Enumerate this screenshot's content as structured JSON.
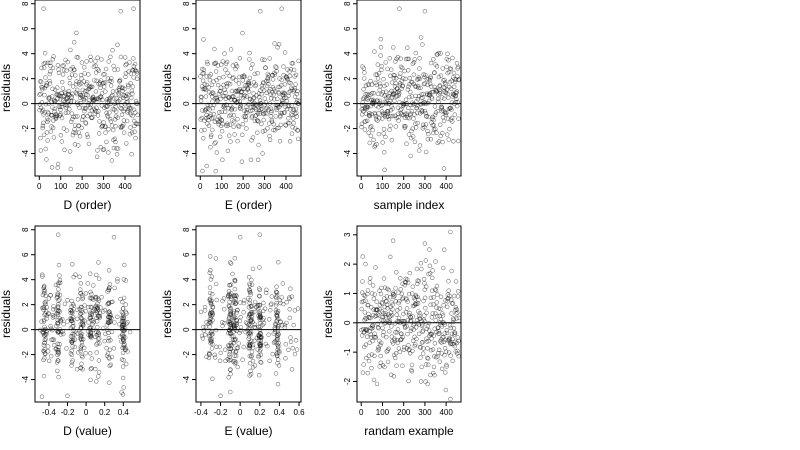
{
  "chart_data": [
    {
      "type": "scatter",
      "xlabel": "D (order)",
      "ylabel": "residuals",
      "xlim": [
        -20,
        470
      ],
      "ylim": [
        -5.8,
        8.3
      ],
      "xticks": [
        0,
        100,
        200,
        300,
        400
      ],
      "yticks": [
        -4,
        -2,
        0,
        2,
        4,
        6,
        8
      ],
      "hline": 0,
      "points": {
        "n": 460,
        "x_range": [
          1,
          460
        ],
        "ordered_x": true,
        "center": 0.3,
        "spread": 1.9,
        "outliers": [
          [
            20,
            7.6
          ],
          [
            60,
            -5.1
          ],
          [
            380,
            7.4
          ],
          [
            440,
            7.6
          ]
        ]
      }
    },
    {
      "type": "scatter",
      "xlabel": "E (order)",
      "ylabel": "residuals",
      "xlim": [
        -20,
        470
      ],
      "ylim": [
        -5.8,
        8.3
      ],
      "xticks": [
        0,
        100,
        200,
        300,
        400
      ],
      "yticks": [
        -4,
        -2,
        0,
        2,
        4,
        6,
        8
      ],
      "hline": 0,
      "points": {
        "n": 460,
        "x_range": [
          1,
          460
        ],
        "ordered_x": true,
        "center": 0.3,
        "spread": 1.9,
        "outliers": [
          [
            10,
            -5.4
          ],
          [
            30,
            -5.0
          ],
          [
            280,
            7.4
          ],
          [
            380,
            7.6
          ]
        ]
      }
    },
    {
      "type": "scatter",
      "xlabel": "sample index",
      "ylabel": "residuals",
      "xlim": [
        -20,
        470
      ],
      "ylim": [
        -5.8,
        8.3
      ],
      "xticks": [
        0,
        100,
        200,
        300,
        400
      ],
      "yticks": [
        -4,
        -2,
        0,
        2,
        4,
        6,
        8
      ],
      "hline": 0,
      "points": {
        "n": 460,
        "x_range": [
          1,
          460
        ],
        "ordered_x": true,
        "center": 0.3,
        "spread": 1.9,
        "outliers": [
          [
            180,
            7.6
          ],
          [
            300,
            7.4
          ],
          [
            110,
            -5.3
          ],
          [
            390,
            -5.2
          ]
        ]
      }
    },
    {
      "type": "scatter",
      "xlabel": "D (value)",
      "ylabel": "residuals",
      "xlim": [
        -0.55,
        0.58
      ],
      "ylim": [
        -5.8,
        8.3
      ],
      "xticks": [
        -0.4,
        -0.2,
        0.0,
        0.2,
        0.4
      ],
      "yticks": [
        -4,
        -2,
        0,
        2,
        4,
        6,
        8
      ],
      "hline": 0,
      "points": {
        "n": 460,
        "x_range": [
          -0.5,
          0.5
        ],
        "x_clusters": [
          -0.45,
          -0.3,
          -0.15,
          -0.05,
          0.05,
          0.12,
          0.25,
          0.4
        ],
        "center": 0.3,
        "spread": 1.9,
        "outliers": [
          [
            -0.3,
            7.6
          ],
          [
            0.3,
            7.4
          ],
          [
            -0.2,
            -5.3
          ]
        ]
      }
    },
    {
      "type": "scatter",
      "xlabel": "E (value)",
      "ylabel": "residuals",
      "xlim": [
        -0.45,
        0.62
      ],
      "ylim": [
        -5.8,
        8.3
      ],
      "xticks": [
        -0.4,
        -0.2,
        0.0,
        0.2,
        0.4,
        0.6
      ],
      "yticks": [
        -4,
        -2,
        0,
        2,
        4,
        6,
        8
      ],
      "hline": 0,
      "points": {
        "n": 460,
        "x_range": [
          -0.4,
          0.6
        ],
        "x_clusters": [
          -0.3,
          -0.1,
          -0.05,
          0.1,
          0.2,
          0.38
        ],
        "center": 0.3,
        "spread": 1.9,
        "outliers": [
          [
            0.0,
            7.4
          ],
          [
            0.2,
            7.6
          ],
          [
            -0.2,
            -5.3
          ],
          [
            -0.1,
            -5.0
          ]
        ]
      }
    },
    {
      "type": "scatter",
      "xlabel": "randam example",
      "ylabel": "residuals",
      "xlim": [
        -20,
        470
      ],
      "ylim": [
        -2.7,
        3.3
      ],
      "xticks": [
        0,
        100,
        200,
        300,
        400
      ],
      "yticks": [
        -2,
        -1,
        0,
        1,
        2,
        3
      ],
      "hline": 0,
      "points": {
        "n": 460,
        "x_range": [
          1,
          460
        ],
        "ordered_x": true,
        "center": 0.0,
        "spread": 0.9,
        "outliers": [
          [
            20,
            2.0
          ],
          [
            150,
            2.8
          ],
          [
            300,
            2.7
          ],
          [
            420,
            3.1
          ],
          [
            420,
            -2.6
          ]
        ]
      }
    }
  ]
}
